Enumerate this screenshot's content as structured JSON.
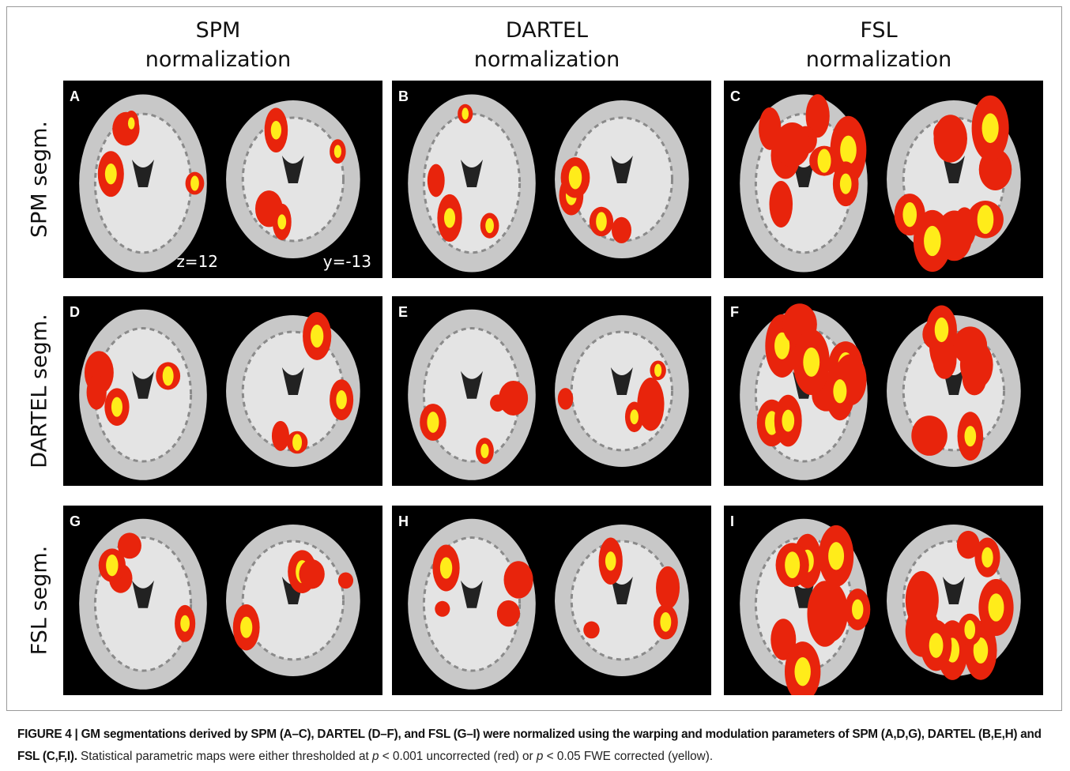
{
  "columns": [
    {
      "line1": "SPM",
      "line2": "normalization"
    },
    {
      "line1": "DARTEL",
      "line2": "normalization"
    },
    {
      "line1": "FSL",
      "line2": "normalization"
    }
  ],
  "rows": [
    "SPM segm.",
    "DARTEL segm.",
    "FSL segm."
  ],
  "panels": [
    {
      "letter": "A",
      "annotations": [
        "z=12",
        "y=-13"
      ]
    },
    {
      "letter": "B"
    },
    {
      "letter": "C"
    },
    {
      "letter": "D"
    },
    {
      "letter": "E"
    },
    {
      "letter": "F"
    },
    {
      "letter": "G"
    },
    {
      "letter": "H"
    },
    {
      "letter": "I"
    }
  ],
  "caption": {
    "lead": "FIGURE 4 | GM segmentations derived by SPM (A–C), DARTEL (D–F), and FSL (G–I) were normalized using the warping and modulation parameters of SPM (A,D,G), DARTEL (B,E,H) and FSL (C,F,I).",
    "parts": [
      "Statistical parametric maps were either thresholded at ",
      "p",
      " < 0.001 uncorrected (red) or ",
      "p",
      " < 0.05 FWE corrected (yellow)."
    ]
  }
}
